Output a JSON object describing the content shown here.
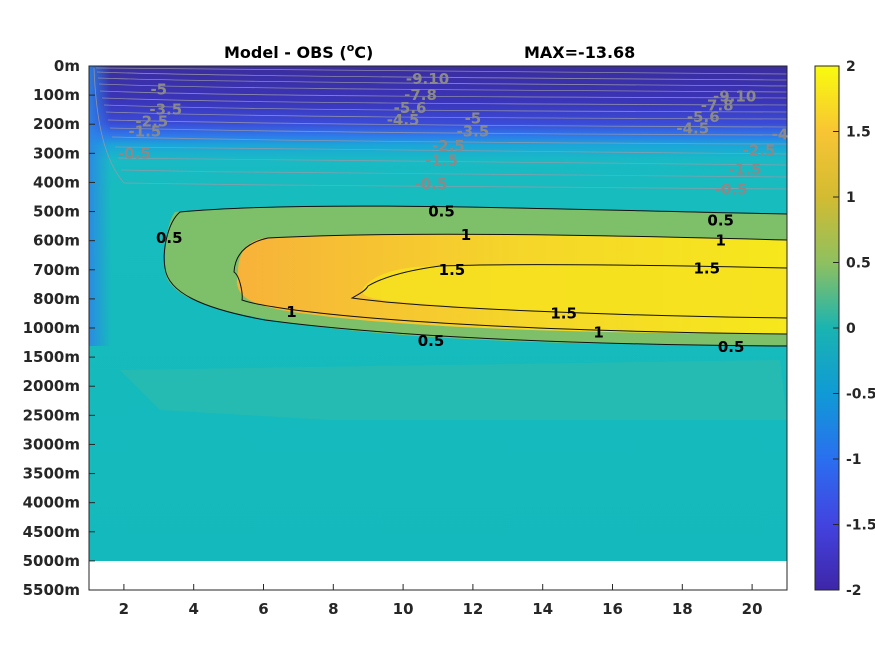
{
  "title_left": "Model - OBS (",
  "title_degree": "o",
  "title_unit_tail": "C)",
  "title_right": "MAX=-13.68",
  "chart_data": {
    "type": "heatmap",
    "title": "Model - OBS (oC)",
    "annotation": "MAX=-13.68",
    "x": [
      2,
      4,
      6,
      8,
      10,
      12,
      14,
      16,
      18,
      20
    ],
    "xlim": [
      1,
      21
    ],
    "y_tick_labels": [
      "0m",
      "100m",
      "200m",
      "300m",
      "400m",
      "500m",
      "600m",
      "700m",
      "800m",
      "1000m",
      "1500m",
      "2000m",
      "2500m",
      "3000m",
      "3500m",
      "4000m",
      "4500m",
      "5000m",
      "5500m"
    ],
    "colorbar": {
      "range": [
        -2,
        2
      ],
      "ticks": [
        "2",
        "1.5",
        "1",
        "0.5",
        "0",
        "-0.5",
        "-1",
        "-1.5",
        "-2"
      ],
      "colormap": "parula"
    },
    "contour_labels_positive": [
      {
        "text": "0.5",
        "xv": 3.3,
        "dv": 5.9
      },
      {
        "text": "0.5",
        "xv": 11.1,
        "dv": 5.0
      },
      {
        "text": "0.5",
        "xv": 19.1,
        "dv": 5.3
      },
      {
        "text": "0.5",
        "xv": 10.8,
        "dv": 9.45
      },
      {
        "text": "0.5",
        "xv": 19.4,
        "dv": 9.65
      },
      {
        "text": "1",
        "xv": 11.8,
        "dv": 5.8
      },
      {
        "text": "1",
        "xv": 19.1,
        "dv": 6.0
      },
      {
        "text": "1",
        "xv": 6.8,
        "dv": 8.45
      },
      {
        "text": "1",
        "xv": 15.6,
        "dv": 9.15
      },
      {
        "text": "1.5",
        "xv": 11.4,
        "dv": 7.0
      },
      {
        "text": "1.5",
        "xv": 18.7,
        "dv": 6.95
      },
      {
        "text": "1.5",
        "xv": 14.6,
        "dv": 8.5
      }
    ],
    "contour_labels_negative": [
      {
        "text": "-5",
        "xv": 3.0,
        "dv": 0.8
      },
      {
        "text": "-3.5",
        "xv": 3.2,
        "dv": 1.5
      },
      {
        "text": "-2.5",
        "xv": 2.8,
        "dv": 1.9
      },
      {
        "text": "-1.5",
        "xv": 2.6,
        "dv": 2.25
      },
      {
        "text": "-0.5",
        "xv": 2.3,
        "dv": 3.0
      },
      {
        "text": "-9.10",
        "xv": 10.7,
        "dv": 0.45
      },
      {
        "text": "-7.8",
        "xv": 10.5,
        "dv": 1.0
      },
      {
        "text": "-5.6",
        "xv": 10.2,
        "dv": 1.45
      },
      {
        "text": "-4.5",
        "xv": 10.0,
        "dv": 1.85
      },
      {
        "text": "-5",
        "xv": 12.0,
        "dv": 1.8
      },
      {
        "text": "-3.5",
        "xv": 12.0,
        "dv": 2.25
      },
      {
        "text": "-2.5",
        "xv": 11.3,
        "dv": 2.75
      },
      {
        "text": "-1.5",
        "xv": 11.1,
        "dv": 3.25
      },
      {
        "text": "-0.5",
        "xv": 10.8,
        "dv": 4.05
      },
      {
        "text": "-9.10",
        "xv": 19.5,
        "dv": 1.05
      },
      {
        "text": "-7.8",
        "xv": 19.0,
        "dv": 1.35
      },
      {
        "text": "-5.6",
        "xv": 18.6,
        "dv": 1.75
      },
      {
        "text": "-4.5",
        "xv": 18.3,
        "dv": 2.15
      },
      {
        "text": "-4",
        "xv": 20.8,
        "dv": 2.35
      },
      {
        "text": "-2.5",
        "xv": 20.2,
        "dv": 2.9
      },
      {
        "text": "-1.5",
        "xv": 19.8,
        "dv": 3.55
      },
      {
        "text": "-0.5",
        "xv": 19.4,
        "dv": 4.25
      }
    ]
  }
}
